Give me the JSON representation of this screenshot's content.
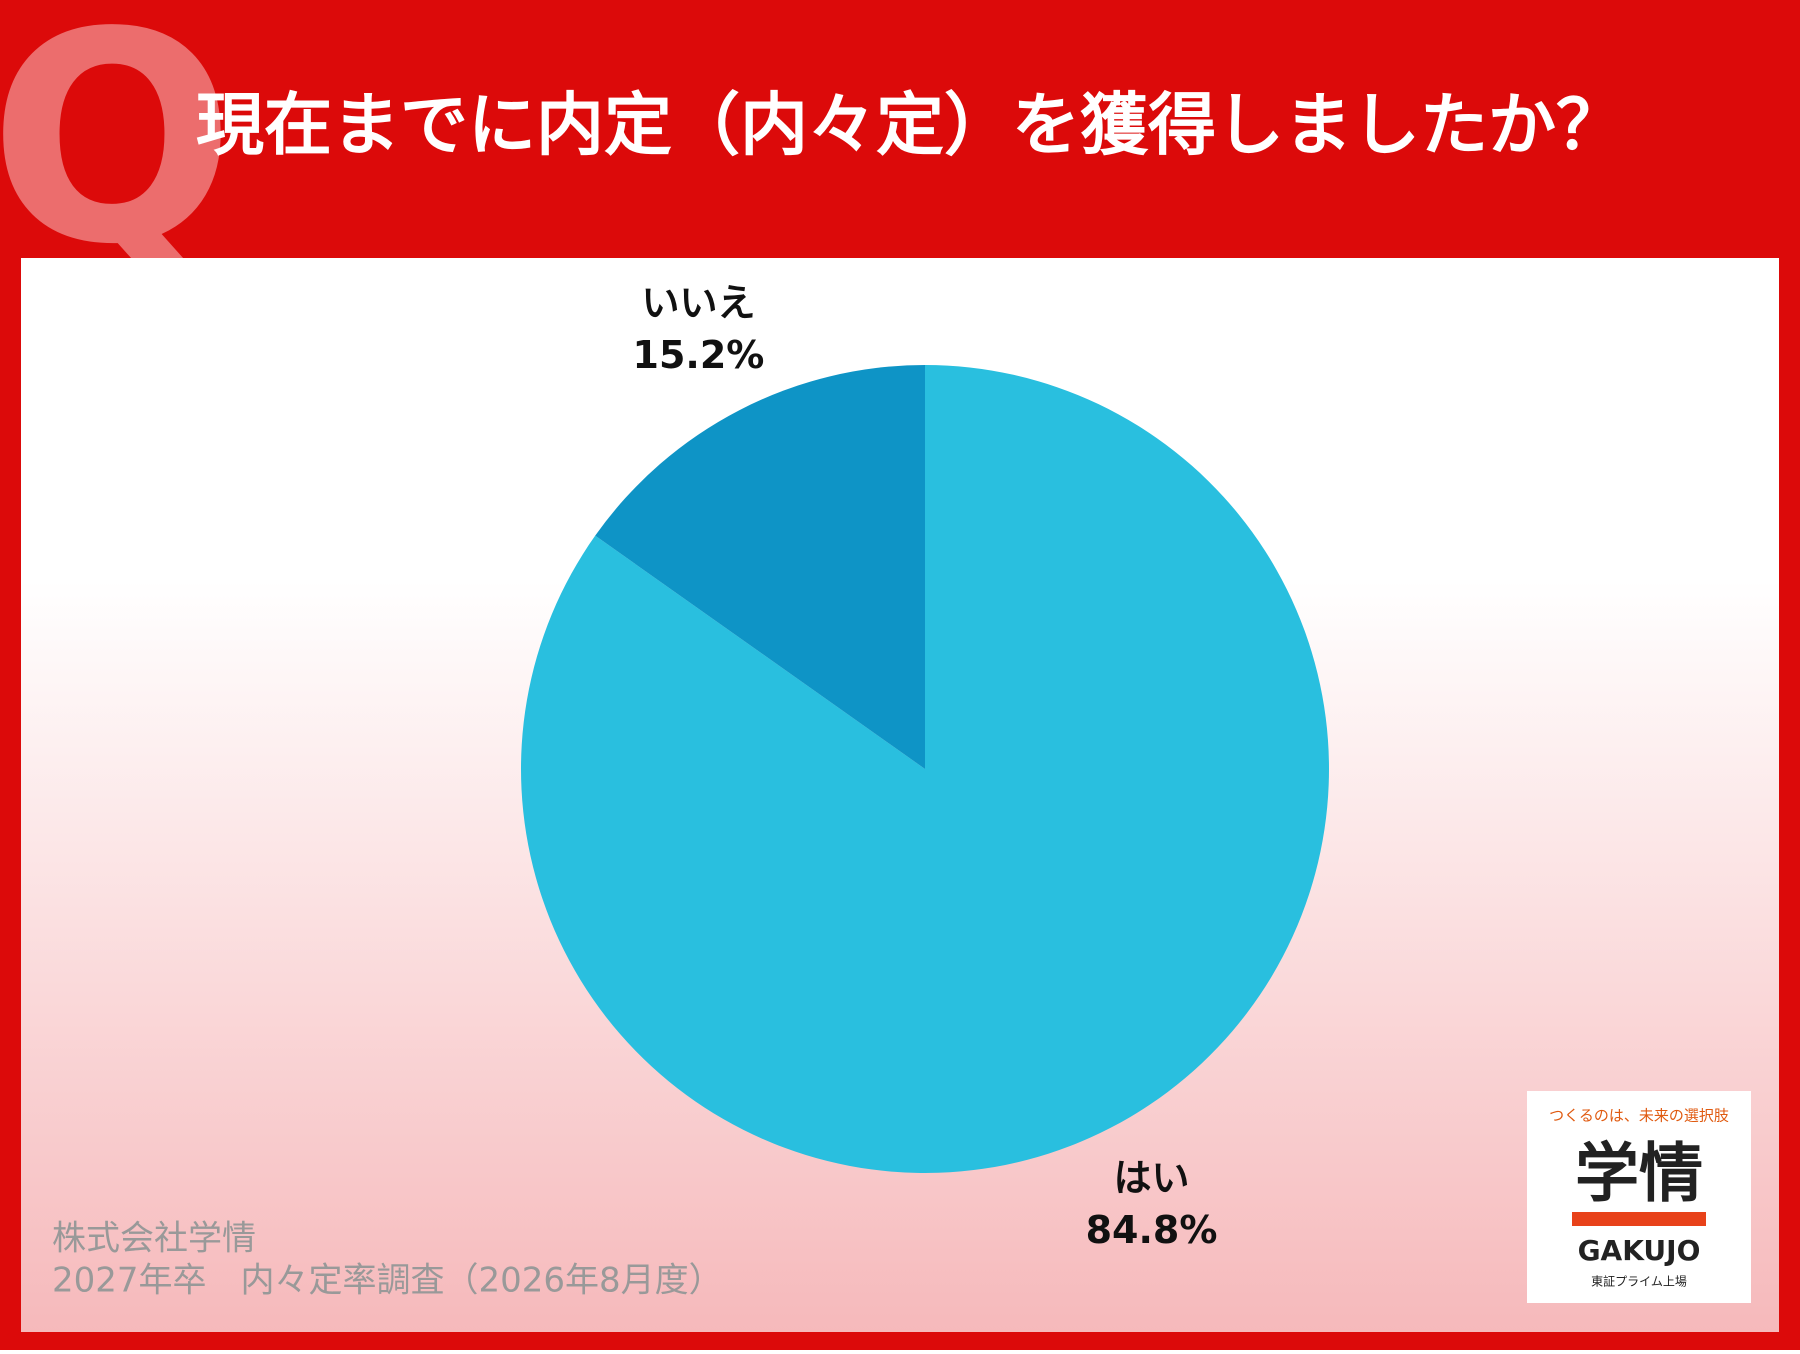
{
  "q_mark": "Q",
  "chart_data": {
    "type": "pie",
    "title": "現在までに内定（内々定）を獲得しましたか？",
    "categories": [
      "はい",
      "いいえ"
    ],
    "values": [
      84.8,
      15.2
    ],
    "value_labels": [
      "84.8%",
      "15.2%"
    ],
    "colors": [
      "#29bfdf",
      "#0e94c6"
    ]
  },
  "source": [
    "株式会社学情",
    "2027年卒　内々定率調査（2026年8月度）"
  ],
  "logo": {
    "tagline": "つくるのは、未来の選択肢",
    "name": "学情",
    "romaji": "GAKUJO",
    "listing": "東証プライム上場"
  }
}
